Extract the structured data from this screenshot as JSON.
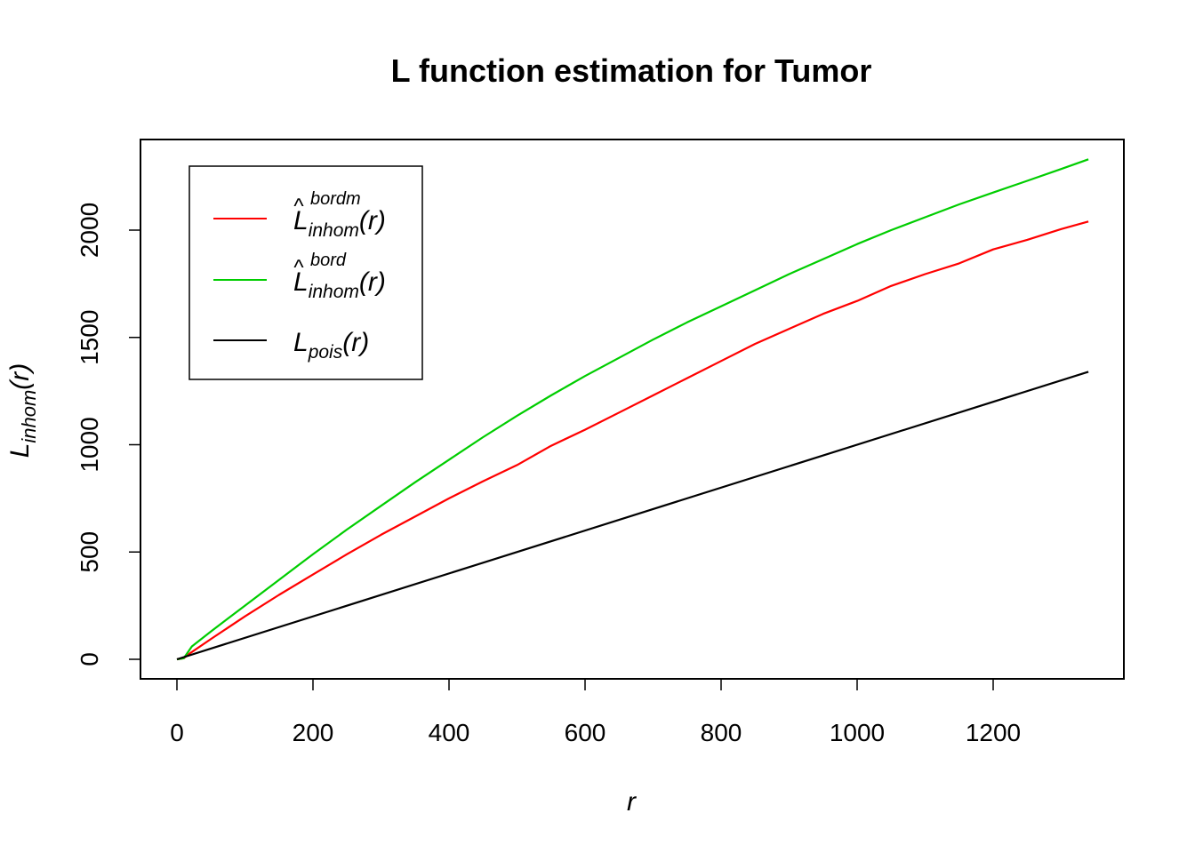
{
  "chart_data": {
    "type": "line",
    "title": "L function estimation for Tumor",
    "xlabel": "r",
    "ylabel": {
      "main": "L",
      "sub": "inhom",
      "arg": "(r)"
    },
    "xlim": [
      0,
      1340
    ],
    "ylim": [
      0,
      2330
    ],
    "x_ticks": [
      "0",
      "200",
      "400",
      "600",
      "800",
      "1000",
      "1200"
    ],
    "y_ticks": [
      "0",
      "500",
      "1000",
      "1500",
      "2000"
    ],
    "grid": false,
    "legend_position": "top-left",
    "series": [
      {
        "key": "bordm",
        "legend": {
          "main": "L",
          "hat": true,
          "sub": "inhom",
          "sup": "bordm",
          "arg": "(r)"
        },
        "color": "#ff0000",
        "points": [
          [
            0,
            0
          ],
          [
            10,
            5
          ],
          [
            20,
            30
          ],
          [
            50,
            95
          ],
          [
            100,
            200
          ],
          [
            150,
            300
          ],
          [
            200,
            395
          ],
          [
            250,
            490
          ],
          [
            300,
            580
          ],
          [
            350,
            665
          ],
          [
            400,
            750
          ],
          [
            450,
            830
          ],
          [
            500,
            905
          ],
          [
            550,
            995
          ],
          [
            600,
            1070
          ],
          [
            650,
            1150
          ],
          [
            700,
            1230
          ],
          [
            750,
            1310
          ],
          [
            800,
            1390
          ],
          [
            850,
            1470
          ],
          [
            900,
            1540
          ],
          [
            950,
            1610
          ],
          [
            1000,
            1670
          ],
          [
            1050,
            1740
          ],
          [
            1100,
            1795
          ],
          [
            1150,
            1845
          ],
          [
            1200,
            1910
          ],
          [
            1250,
            1955
          ],
          [
            1300,
            2005
          ],
          [
            1340,
            2040
          ]
        ]
      },
      {
        "key": "bord",
        "legend": {
          "main": "L",
          "hat": true,
          "sub": "inhom",
          "sup": "bord",
          "arg": "(r)"
        },
        "color": "#00cd00",
        "points": [
          [
            0,
            0
          ],
          [
            10,
            5
          ],
          [
            22,
            60
          ],
          [
            50,
            130
          ],
          [
            100,
            250
          ],
          [
            150,
            370
          ],
          [
            200,
            490
          ],
          [
            250,
            605
          ],
          [
            300,
            715
          ],
          [
            350,
            825
          ],
          [
            400,
            930
          ],
          [
            450,
            1035
          ],
          [
            500,
            1135
          ],
          [
            550,
            1230
          ],
          [
            600,
            1320
          ],
          [
            650,
            1405
          ],
          [
            700,
            1490
          ],
          [
            750,
            1570
          ],
          [
            800,
            1645
          ],
          [
            850,
            1720
          ],
          [
            900,
            1795
          ],
          [
            950,
            1865
          ],
          [
            1000,
            1935
          ],
          [
            1050,
            2000
          ],
          [
            1100,
            2060
          ],
          [
            1150,
            2120
          ],
          [
            1200,
            2175
          ],
          [
            1250,
            2230
          ],
          [
            1300,
            2285
          ],
          [
            1340,
            2330
          ]
        ]
      },
      {
        "key": "pois",
        "legend": {
          "main": "L",
          "hat": false,
          "sub": "pois",
          "sup": "",
          "arg": "(r)"
        },
        "color": "#000000",
        "points": [
          [
            0,
            0
          ],
          [
            1340,
            1340
          ]
        ]
      }
    ]
  }
}
